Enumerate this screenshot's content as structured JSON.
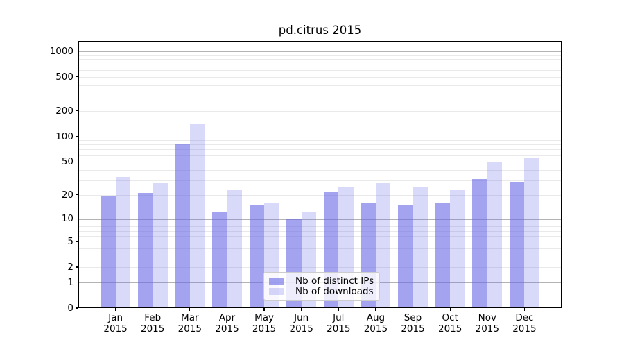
{
  "chart_data": {
    "type": "bar",
    "title": "pd.citrus 2015",
    "categories": [
      "Jan",
      "Feb",
      "Mar",
      "Apr",
      "May",
      "Jun",
      "Jul",
      "Aug",
      "Sep",
      "Oct",
      "Nov",
      "Dec"
    ],
    "year": "2015",
    "series": [
      {
        "name": "Nb of distinct IPs",
        "values": [
          19,
          21,
          80,
          12,
          15,
          10,
          22,
          16,
          15,
          16,
          31,
          29
        ],
        "color": "#6666e6",
        "alpha": 0.6,
        "composite_color": "#a3a3f0"
      },
      {
        "name": "Nb of downloads",
        "values": [
          33,
          28,
          143,
          23,
          16,
          12,
          25,
          28,
          25,
          23,
          50,
          55
        ],
        "color": "#6666e6",
        "alpha": 0.25,
        "composite_color": "#d9d9f9"
      }
    ],
    "yscale": "log1p",
    "ylim": [
      0,
      1310
    ],
    "yticks": [
      1000,
      500,
      200,
      100,
      50,
      20,
      10,
      5,
      2,
      1,
      0
    ],
    "ytick_labels": [
      "1000",
      "500",
      "200",
      "100",
      "50",
      "20",
      "10",
      "5",
      "2",
      "1",
      "0"
    ],
    "grid": true,
    "legend_position": "lower center",
    "xlabel": "",
    "ylabel": ""
  },
  "colors": {
    "background": "#ffffff",
    "text": "#000000",
    "spine": "#000000",
    "grid_minor": "#e9e9e9",
    "grid_major": "#b3b3b3",
    "legend_border": "#cccccc",
    "legend_bg": "rgba(255,255,255,0.8)"
  }
}
